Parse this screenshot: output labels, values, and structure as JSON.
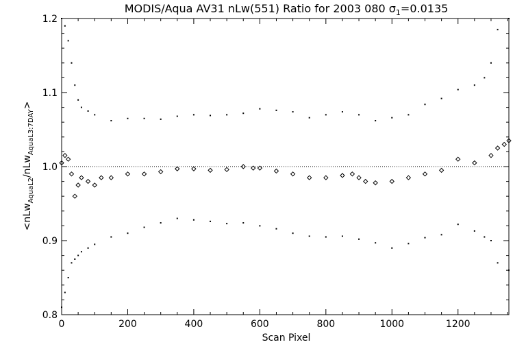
{
  "chart_data": {
    "type": "scatter",
    "title": {
      "prefix": "MODIS/Aqua AV31 nLw(551) Ratio for 2003 080 ",
      "sigma_symbol": "σ",
      "sigma_subscript": "1",
      "sigma_value": "=0.0135"
    },
    "xlabel": "Scan Pixel",
    "ylabel": {
      "open": "<nLw",
      "sub1": "AquaL2",
      "mid": "/nLw",
      "sub2": "AquaL3:7DAY",
      "close": ">"
    },
    "xlim": [
      0,
      1354
    ],
    "ylim": [
      0.8,
      1.2
    ],
    "x_ticks": [
      0,
      200,
      400,
      600,
      800,
      1000,
      1200
    ],
    "x_tick_labels": [
      "0",
      "200",
      "400",
      "600",
      "800",
      "1000",
      "1200"
    ],
    "y_ticks": [
      0.8,
      0.9,
      1.0,
      1.1,
      1.2
    ],
    "y_tick_labels": [
      "0.8",
      "0.9",
      "1.0",
      "1.1",
      "1.2"
    ],
    "reference_line": 1.0,
    "grid": false,
    "series": [
      {
        "role": "mean ratio",
        "style": "diamond",
        "x": [
          0,
          10,
          20,
          30,
          40,
          50,
          60,
          80,
          100,
          120,
          150,
          200,
          250,
          300,
          350,
          400,
          450,
          500,
          550,
          580,
          600,
          650,
          700,
          750,
          800,
          850,
          880,
          900,
          920,
          950,
          1000,
          1050,
          1100,
          1150,
          1200,
          1250,
          1300,
          1320,
          1340,
          1354
        ],
        "y": [
          1.005,
          1.015,
          1.01,
          0.99,
          0.96,
          0.975,
          0.985,
          0.98,
          0.975,
          0.985,
          0.985,
          0.99,
          0.99,
          0.993,
          0.997,
          0.997,
          0.995,
          0.996,
          1.0,
          0.998,
          0.998,
          0.994,
          0.99,
          0.985,
          0.985,
          0.988,
          0.99,
          0.985,
          0.98,
          0.978,
          0.98,
          0.985,
          0.99,
          0.995,
          1.01,
          1.005,
          1.015,
          1.025,
          1.03,
          1.035
        ]
      },
      {
        "role": "upper bound",
        "style": "dot",
        "x": [
          0,
          10,
          20,
          30,
          40,
          50,
          60,
          80,
          100,
          150,
          200,
          250,
          300,
          350,
          400,
          450,
          500,
          550,
          600,
          650,
          700,
          750,
          800,
          850,
          900,
          950,
          1000,
          1050,
          1100,
          1150,
          1200,
          1250,
          1280,
          1300,
          1320,
          1354
        ],
        "y": [
          1.2,
          1.19,
          1.17,
          1.14,
          1.11,
          1.09,
          1.08,
          1.075,
          1.07,
          1.062,
          1.065,
          1.065,
          1.064,
          1.068,
          1.07,
          1.069,
          1.07,
          1.072,
          1.078,
          1.076,
          1.074,
          1.066,
          1.07,
          1.074,
          1.07,
          1.062,
          1.066,
          1.07,
          1.084,
          1.092,
          1.104,
          1.11,
          1.12,
          1.14,
          1.185,
          1.2
        ]
      },
      {
        "role": "lower bound",
        "style": "dot",
        "x": [
          0,
          10,
          20,
          30,
          40,
          50,
          60,
          80,
          100,
          150,
          200,
          250,
          300,
          350,
          400,
          450,
          500,
          550,
          600,
          650,
          700,
          750,
          800,
          850,
          900,
          950,
          1000,
          1050,
          1100,
          1150,
          1200,
          1250,
          1280,
          1300,
          1320,
          1354
        ],
        "y": [
          0.81,
          0.83,
          0.85,
          0.87,
          0.875,
          0.88,
          0.885,
          0.89,
          0.895,
          0.905,
          0.91,
          0.918,
          0.924,
          0.93,
          0.928,
          0.926,
          0.923,
          0.924,
          0.92,
          0.916,
          0.91,
          0.906,
          0.905,
          0.906,
          0.902,
          0.897,
          0.89,
          0.896,
          0.904,
          0.908,
          0.922,
          0.913,
          0.905,
          0.9,
          0.87,
          0.86
        ]
      }
    ]
  }
}
